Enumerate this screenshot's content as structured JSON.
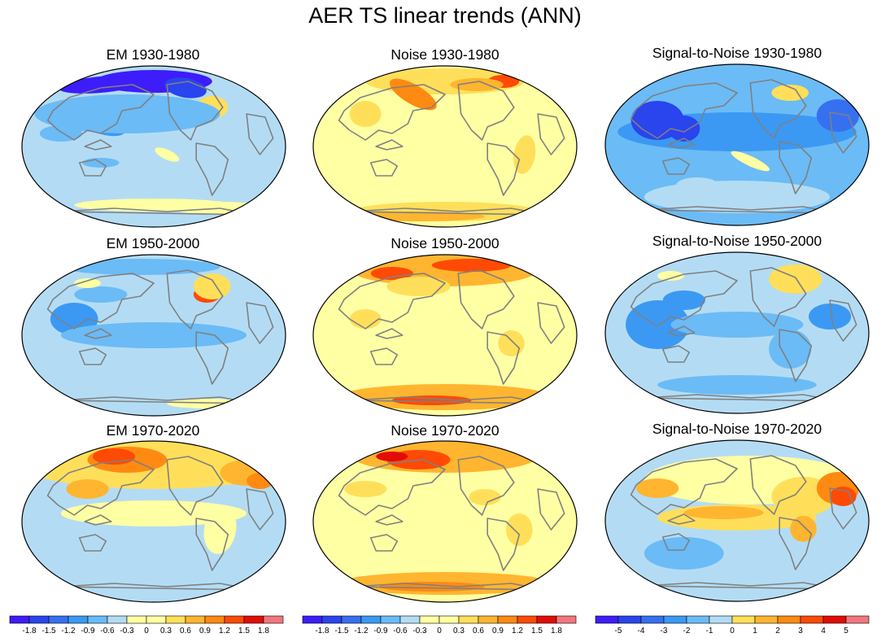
{
  "figure": {
    "title": "AER TS linear trends (ANN)"
  },
  "palette": [
    "#3d1dfa",
    "#2a44ee",
    "#3670f0",
    "#3b99f3",
    "#6bbbf6",
    "#b3dcf4",
    "#ffffa3",
    "#ffdf5a",
    "#ffb52f",
    "#ff8a12",
    "#ff4a06",
    "#e10d06",
    "#f2767d"
  ],
  "coastline_color": "#808080",
  "rows": [
    {
      "panels": [
        {
          "title": "EM 1930-1980",
          "colorbar": 0,
          "base": 5,
          "patches": [
            [
              0.5,
              0.1,
              0.22,
              0.07,
              0,
              0
            ],
            [
              0.3,
              0.12,
              0.16,
              0.05,
              0,
              -5
            ],
            [
              0.62,
              0.14,
              0.08,
              0.06,
              1,
              10
            ],
            [
              0.72,
              0.26,
              0.06,
              0.07,
              7,
              0
            ],
            [
              0.3,
              0.35,
              0.1,
              0.07,
              3,
              20
            ],
            [
              0.15,
              0.42,
              0.08,
              0.05,
              4,
              0
            ],
            [
              0.55,
              0.55,
              0.05,
              0.03,
              6,
              25
            ],
            [
              0.3,
              0.6,
              0.07,
              0.03,
              4,
              0
            ],
            [
              0.5,
              0.86,
              0.3,
              0.04,
              6,
              0
            ],
            [
              0.75,
              0.88,
              0.18,
              0.04,
              6,
              0
            ],
            [
              0.4,
              0.3,
              0.35,
              0.12,
              4,
              0
            ]
          ]
        },
        {
          "title": "Noise 1930-1980",
          "colorbar": 1,
          "base": 6,
          "patches": [
            [
              0.5,
              0.1,
              0.3,
              0.08,
              7,
              0
            ],
            [
              0.38,
              0.18,
              0.1,
              0.06,
              9,
              30
            ],
            [
              0.72,
              0.1,
              0.06,
              0.04,
              10,
              0
            ],
            [
              0.5,
              0.9,
              0.35,
              0.06,
              7,
              0
            ],
            [
              0.4,
              0.93,
              0.25,
              0.03,
              8,
              0
            ],
            [
              0.2,
              0.3,
              0.06,
              0.08,
              7,
              0
            ],
            [
              0.8,
              0.55,
              0.04,
              0.12,
              7,
              10
            ],
            [
              0.62,
              0.12,
              0.1,
              0.04,
              8,
              0
            ]
          ]
        },
        {
          "title": "Signal-to-Noise 1930-1980",
          "colorbar": 2,
          "base": 4,
          "patches": [
            [
              0.5,
              0.42,
              0.45,
              0.12,
              3,
              0
            ],
            [
              0.2,
              0.35,
              0.1,
              0.12,
              1,
              0
            ],
            [
              0.88,
              0.32,
              0.08,
              0.1,
              2,
              0
            ],
            [
              0.55,
              0.6,
              0.08,
              0.03,
              6,
              25
            ],
            [
              0.7,
              0.18,
              0.07,
              0.05,
              7,
              0
            ],
            [
              0.5,
              0.82,
              0.35,
              0.1,
              5,
              0
            ],
            [
              0.35,
              0.75,
              0.08,
              0.05,
              5,
              0
            ],
            [
              0.3,
              0.4,
              0.06,
              0.08,
              1,
              0
            ]
          ]
        }
      ]
    },
    {
      "panels": [
        {
          "title": "EM 1950-2000",
          "colorbar": 0,
          "base": 5,
          "patches": [
            [
              0.45,
              0.08,
              0.3,
              0.05,
              4,
              0
            ],
            [
              0.7,
              0.25,
              0.05,
              0.05,
              10,
              0
            ],
            [
              0.72,
              0.2,
              0.07,
              0.08,
              7,
              0
            ],
            [
              0.2,
              0.4,
              0.09,
              0.1,
              3,
              0
            ],
            [
              0.5,
              0.5,
              0.35,
              0.08,
              4,
              0
            ],
            [
              0.3,
              0.25,
              0.1,
              0.05,
              4,
              0
            ],
            [
              0.25,
              0.18,
              0.05,
              0.03,
              6,
              0
            ],
            [
              0.7,
              0.92,
              0.15,
              0.03,
              6,
              0
            ]
          ]
        },
        {
          "title": "Noise 1950-2000",
          "colorbar": 1,
          "base": 6,
          "patches": [
            [
              0.5,
              0.1,
              0.35,
              0.1,
              8,
              0
            ],
            [
              0.6,
              0.07,
              0.15,
              0.04,
              10,
              0
            ],
            [
              0.3,
              0.12,
              0.08,
              0.04,
              10,
              0
            ],
            [
              0.5,
              0.88,
              0.4,
              0.08,
              8,
              0
            ],
            [
              0.45,
              0.9,
              0.15,
              0.03,
              10,
              0
            ],
            [
              0.2,
              0.4,
              0.06,
              0.06,
              7,
              0
            ],
            [
              0.75,
              0.55,
              0.05,
              0.08,
              7,
              0
            ],
            [
              0.4,
              0.2,
              0.12,
              0.06,
              7,
              0
            ]
          ]
        },
        {
          "title": "Signal-to-Noise 1950-2000",
          "colorbar": 2,
          "base": 5,
          "patches": [
            [
              0.2,
              0.45,
              0.12,
              0.15,
              3,
              0
            ],
            [
              0.3,
              0.3,
              0.08,
              0.06,
              3,
              0
            ],
            [
              0.5,
              0.45,
              0.25,
              0.08,
              4,
              0
            ],
            [
              0.85,
              0.4,
              0.08,
              0.08,
              3,
              0
            ],
            [
              0.72,
              0.2,
              0.06,
              0.06,
              10,
              0
            ],
            [
              0.72,
              0.17,
              0.1,
              0.09,
              7,
              0
            ],
            [
              0.7,
              0.6,
              0.08,
              0.12,
              4,
              0
            ],
            [
              0.25,
              0.15,
              0.05,
              0.03,
              6,
              0
            ],
            [
              0.5,
              0.82,
              0.3,
              0.06,
              4,
              0
            ]
          ]
        }
      ]
    },
    {
      "panels": [
        {
          "title": "EM 1970-2020",
          "colorbar": 0,
          "base": 5,
          "patches": [
            [
              0.5,
              0.15,
              0.5,
              0.15,
              7,
              0
            ],
            [
              0.4,
              0.12,
              0.15,
              0.08,
              9,
              0
            ],
            [
              0.35,
              0.1,
              0.08,
              0.05,
              10,
              0
            ],
            [
              0.5,
              0.45,
              0.35,
              0.08,
              6,
              0
            ],
            [
              0.75,
              0.55,
              0.06,
              0.15,
              6,
              10
            ],
            [
              0.85,
              0.2,
              0.1,
              0.08,
              8,
              0
            ],
            [
              0.9,
              0.25,
              0.05,
              0.05,
              9,
              0
            ],
            [
              0.25,
              0.3,
              0.08,
              0.06,
              8,
              0
            ]
          ]
        },
        {
          "title": "Noise 1970-2020",
          "colorbar": 1,
          "base": 6,
          "patches": [
            [
              0.5,
              0.1,
              0.35,
              0.1,
              8,
              0
            ],
            [
              0.4,
              0.12,
              0.12,
              0.06,
              10,
              0
            ],
            [
              0.3,
              0.1,
              0.06,
              0.03,
              11,
              0
            ],
            [
              0.5,
              0.88,
              0.4,
              0.07,
              8,
              0
            ],
            [
              0.45,
              0.9,
              0.2,
              0.03,
              9,
              0
            ],
            [
              0.65,
              0.35,
              0.06,
              0.05,
              7,
              0
            ],
            [
              0.2,
              0.3,
              0.08,
              0.05,
              7,
              0
            ],
            [
              0.78,
              0.55,
              0.05,
              0.1,
              7,
              0
            ]
          ]
        },
        {
          "title": "Signal-to-Noise 1970-2020",
          "colorbar": 2,
          "base": 5,
          "patches": [
            [
              0.55,
              0.25,
              0.4,
              0.15,
              6,
              0
            ],
            [
              0.75,
              0.35,
              0.12,
              0.12,
              7,
              0
            ],
            [
              0.88,
              0.3,
              0.08,
              0.1,
              9,
              0
            ],
            [
              0.9,
              0.35,
              0.05,
              0.06,
              10,
              0
            ],
            [
              0.5,
              0.48,
              0.3,
              0.08,
              7,
              0
            ],
            [
              0.45,
              0.45,
              0.15,
              0.04,
              8,
              0
            ],
            [
              0.75,
              0.55,
              0.05,
              0.08,
              8,
              0
            ],
            [
              0.2,
              0.3,
              0.08,
              0.06,
              8,
              0
            ],
            [
              0.3,
              0.7,
              0.15,
              0.1,
              4,
              0
            ]
          ]
        }
      ]
    }
  ],
  "colorbars": [
    {
      "labels": [
        "-1.8",
        "-1.5",
        "-1.2",
        "-0.9",
        "-0.6",
        "-0.3",
        "0",
        "0.3",
        "0.6",
        "0.9",
        "1.2",
        "1.5",
        "1.8"
      ]
    },
    {
      "labels": [
        "-1.8",
        "-1.5",
        "-1.2",
        "-0.9",
        "-0.6",
        "-0.3",
        "0",
        "0.3",
        "0.6",
        "0.9",
        "1.2",
        "1.5",
        "1.8"
      ]
    },
    {
      "labels": [
        "-5",
        "-4",
        "-3",
        "-2",
        "-1",
        "0",
        "1",
        "2",
        "3",
        "4",
        "5"
      ]
    }
  ]
}
